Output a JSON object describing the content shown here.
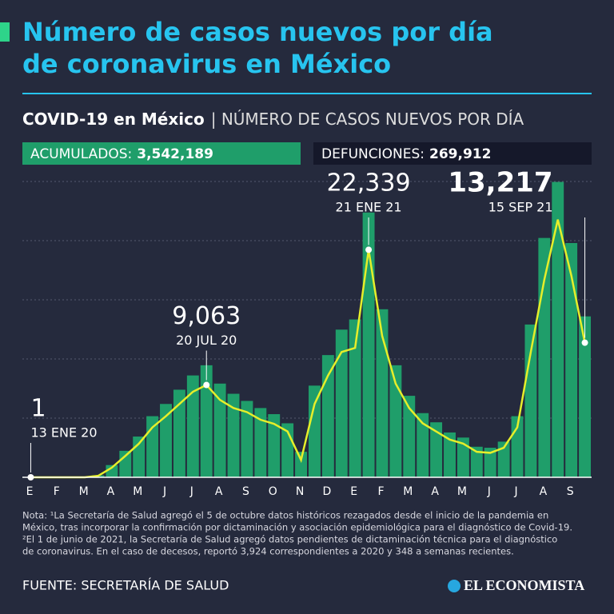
{
  "title": "Número de casos nuevos por día de coronavirus en México",
  "subtitle_bold": "COVID-19 en México",
  "subtitle": "| NÚMERO DE CASOS NUEVOS POR DÍA",
  "stats": [
    {
      "label": "ACUMULADOS:",
      "value": "3,542,189"
    },
    {
      "label": "DEFUNCIONES:",
      "value": "269,912"
    }
  ],
  "chart_data": {
    "type": "bar",
    "categories": [
      "E",
      null,
      "F",
      null,
      "M",
      null,
      "A",
      null,
      "M",
      null,
      "J",
      null,
      "J",
      null,
      "A",
      null,
      "S",
      null,
      "O",
      null,
      "N",
      null,
      "D",
      null,
      "E",
      null,
      "F",
      null,
      "M",
      null,
      "A",
      null,
      "M",
      null,
      "J",
      null,
      "J",
      null,
      "A",
      null,
      "S",
      null
    ],
    "series": [
      {
        "color": "#1f9e6a",
        "values": [
          1,
          0,
          0,
          0,
          0,
          200,
          1200,
          2600,
          4000,
          6000,
          7200,
          8600,
          10000,
          11000,
          9200,
          8200,
          7500,
          6800,
          6200,
          5300,
          2500,
          9000,
          12000,
          14500,
          15500,
          26000,
          16500,
          11000,
          8000,
          6300,
          5400,
          4400,
          3900,
          3000,
          2900,
          3500,
          6000,
          15000,
          23500,
          29000,
          23000,
          15800
        ]
      },
      {
        "type": "line",
        "color": "#e6ee2a",
        "values": [
          1,
          0,
          0,
          0,
          0,
          150,
          950,
          2100,
          3300,
          4900,
          6000,
          7200,
          8400,
          9063,
          7600,
          6800,
          6400,
          5650,
          5250,
          4500,
          1700,
          7200,
          10000,
          12300,
          12700,
          22339,
          13900,
          9200,
          6800,
          5300,
          4500,
          3700,
          3300,
          2500,
          2400,
          2900,
          4900,
          12300,
          19400,
          25300,
          19800,
          13217
        ],
        "value_labels": [
          "1",
          null,
          null,
          null,
          null,
          null,
          null,
          null,
          null,
          null,
          null,
          null,
          null,
          "9,063",
          null,
          null,
          null,
          null,
          null,
          null,
          null,
          null,
          null,
          null,
          null,
          "22,339",
          null,
          null,
          null,
          null,
          null,
          null,
          null,
          null,
          null,
          null,
          null,
          null,
          null,
          null,
          null,
          "13,217"
        ],
        "value_dates": [
          "13 ENE 20",
          null,
          null,
          null,
          null,
          null,
          null,
          null,
          null,
          null,
          null,
          null,
          null,
          "20 JUL 20",
          null,
          null,
          null,
          null,
          null,
          null,
          null,
          null,
          null,
          null,
          null,
          "21 ENE 21",
          null,
          null,
          null,
          null,
          null,
          null,
          null,
          null,
          null,
          null,
          null,
          null,
          null,
          null,
          null,
          "15 SEP 21"
        ]
      }
    ],
    "ylim": [
      0,
      30000
    ]
  },
  "note": [
    "Nota: ¹La Secretaría de Salud agregó el 5 de octubre datos históricos rezagados desde el inicio de la pandemia en",
    "México, tras incorporar la confirmación por dictaminación y asociación epidemiológica para el diagnóstico de Covid-19.",
    "²El 1 de junio de 2021, la Secretaría de Salud agregó datos pendientes de dictaminación técnica para el diagnóstico",
    "de coronavirus. En el caso de decesos, reportó 3,924 correspondientes a 2020 y 348 a semanas recientes."
  ],
  "source": "FUENTE: SECRETARÍA DE SALUD",
  "logo": "EL ECONOMISTA"
}
